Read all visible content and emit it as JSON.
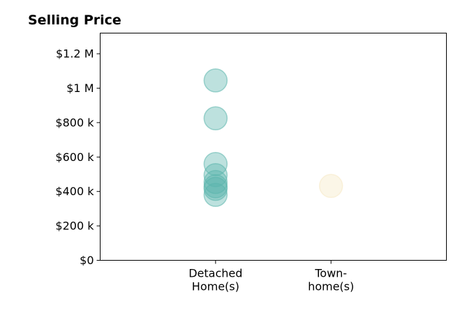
{
  "chart_data": {
    "type": "scatter",
    "title": "Selling Price",
    "xlabel": "",
    "ylabel": "",
    "categories": [
      [
        "Detached",
        "Home(s)"
      ],
      [
        "Town-",
        "home(s)"
      ]
    ],
    "x_range": [
      -1,
      2
    ],
    "ylim": [
      0,
      1320000
    ],
    "y_ticks": [
      {
        "value": 0,
        "label": "$0"
      },
      {
        "value": 200000,
        "label": "$200 k"
      },
      {
        "value": 400000,
        "label": "$400 k"
      },
      {
        "value": 600000,
        "label": "$600 k"
      },
      {
        "value": 800000,
        "label": "$800 k"
      },
      {
        "value": 1000000,
        "label": "$1 M"
      },
      {
        "value": 1200000,
        "label": "$1.2 M"
      }
    ],
    "grid": false,
    "legend": "none",
    "colors": {
      "detached": "#5ab4ac",
      "townhome": "#f6e8c3"
    },
    "series": [
      {
        "category_index": 0,
        "color_key": "detached",
        "values": [
          1045000,
          825000,
          560000,
          495000,
          455000,
          430000,
          415000,
          380000
        ]
      },
      {
        "category_index": 1,
        "color_key": "townhome",
        "values": [
          432000
        ]
      }
    ]
  }
}
